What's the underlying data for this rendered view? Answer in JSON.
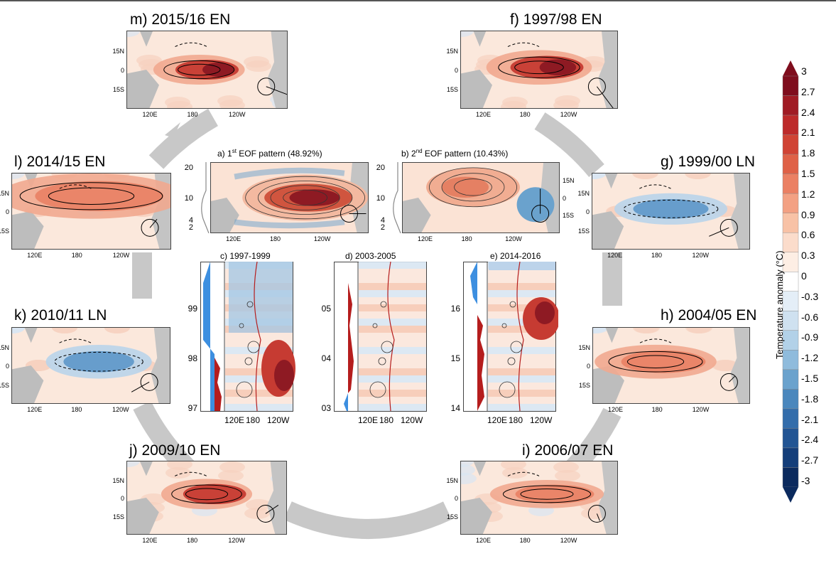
{
  "panels": {
    "m": {
      "title": "m) 2015/16 EN",
      "phase": "EN"
    },
    "f": {
      "title": "f) 1997/98 EN",
      "phase": "EN"
    },
    "l": {
      "title": "l) 2014/15 EN",
      "phase": "EN"
    },
    "g": {
      "title": "g) 1999/00 LN",
      "phase": "LN"
    },
    "k": {
      "title": "k) 2010/11 LN",
      "phase": "LN"
    },
    "h": {
      "title": "h) 2004/05 EN",
      "phase": "EN"
    },
    "j": {
      "title": "j) 2009/10 EN",
      "phase": "EN"
    },
    "i": {
      "title": "i) 2006/07 EN",
      "phase": "EN"
    }
  },
  "map_axes": {
    "lat_labels": [
      "15N",
      "0",
      "15S"
    ],
    "lon_labels": [
      "120E",
      "180",
      "120W"
    ]
  },
  "eof": {
    "a": {
      "prefix": "a) 1",
      "sup": "st",
      "suffix": " EOF pattern (48.92%)"
    },
    "b": {
      "prefix": "b) 2",
      "sup": "nd",
      "suffix": " EOF pattern (10.43%)"
    },
    "y_ticks": [
      "20",
      "10",
      "4",
      "2"
    ]
  },
  "pc": {
    "c": {
      "title": "c) 1997-1999",
      "years": [
        "99",
        "98",
        "97"
      ]
    },
    "d": {
      "title": "d) 2003-2005",
      "years": [
        "05",
        "04",
        "03"
      ]
    },
    "e": {
      "title": "e) 2014-2016",
      "years": [
        "16",
        "15",
        "14"
      ]
    },
    "x_labels": [
      "120E",
      "180",
      "120W"
    ]
  },
  "colorbar": {
    "title": "Temperature anomaly (°C)",
    "labels": [
      "3",
      "2.7",
      "2.4",
      "2.1",
      "1.8",
      "1.5",
      "1.2",
      "0.9",
      "0.6",
      "0.3",
      "0",
      "-0.3",
      "-0.6",
      "-0.9",
      "-1.2",
      "-1.5",
      "-1.8",
      "-2.1",
      "-2.4",
      "-2.7",
      "-3"
    ],
    "colors": [
      "#7f0d1d",
      "#a01b24",
      "#bd2a2a",
      "#d04334",
      "#df6147",
      "#eb8063",
      "#f3a183",
      "#f8c2a6",
      "#fbdccb",
      "#fdeee4",
      "#ffffff",
      "#e4eef7",
      "#cfe1f0",
      "#b2d1e8",
      "#8fbbdc",
      "#6aa2cd",
      "#4a87bd",
      "#336dab",
      "#225594",
      "#143e7a",
      "#0b2a5e"
    ],
    "range": [
      -3,
      3
    ]
  },
  "chart_data": {
    "type": "heatmap",
    "title": "",
    "eof_variance_percent": {
      "eof1": 48.92,
      "eof2": 10.43
    },
    "events": [
      {
        "panel": "f",
        "year": "1997/98",
        "phase": "EN"
      },
      {
        "panel": "g",
        "year": "1999/00",
        "phase": "LN"
      },
      {
        "panel": "h",
        "year": "2004/05",
        "phase": "EN"
      },
      {
        "panel": "i",
        "year": "2006/07",
        "phase": "EN"
      },
      {
        "panel": "j",
        "year": "2009/10",
        "phase": "EN"
      },
      {
        "panel": "k",
        "year": "2010/11",
        "phase": "LN"
      },
      {
        "panel": "l",
        "year": "2014/15",
        "phase": "EN"
      },
      {
        "panel": "m",
        "year": "2015/16",
        "phase": "EN"
      }
    ],
    "colorbar_range": [
      -3,
      3
    ]
  }
}
